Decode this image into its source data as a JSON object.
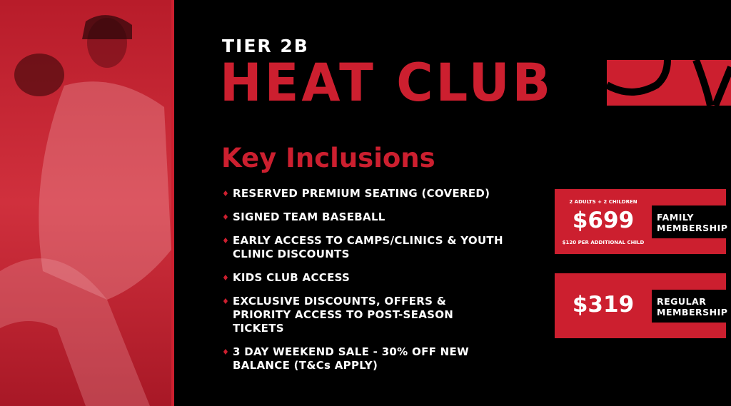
{
  "header": {
    "tier": "TIER 2B",
    "title": "HEAT CLUB"
  },
  "section_title": "Key Inclusions",
  "inclusions": [
    "RESERVED PREMIUM SEATING (COVERED)",
    "SIGNED TEAM BASEBALL",
    "EARLY ACCESS TO CAMPS/CLINICS & YOUTH CLINIC DISCOUNTS",
    "KIDS CLUB ACCESS",
    "EXCLUSIVE DISCOUNTS, OFFERS & PRIORITY ACCESS TO POST-SEASON TICKETS",
    "3 DAY WEEKEND SALE - 30% OFF NEW BALANCE (T&Cs APPLY)"
  ],
  "bullet_icon": "flame-icon",
  "family": {
    "top_note": "2 ADULTS + 2 CHILDREN",
    "price": "$699",
    "bottom_note": "$120 PER ADDITIONAL CHILD",
    "label_1": "FAMILY",
    "label_2": "MEMBERSHIP"
  },
  "regular": {
    "price": "$319",
    "label_1": "REGULAR",
    "label_2": "MEMBERSHIP"
  },
  "colors": {
    "accent": "#cc1f2f",
    "background": "#000000"
  }
}
